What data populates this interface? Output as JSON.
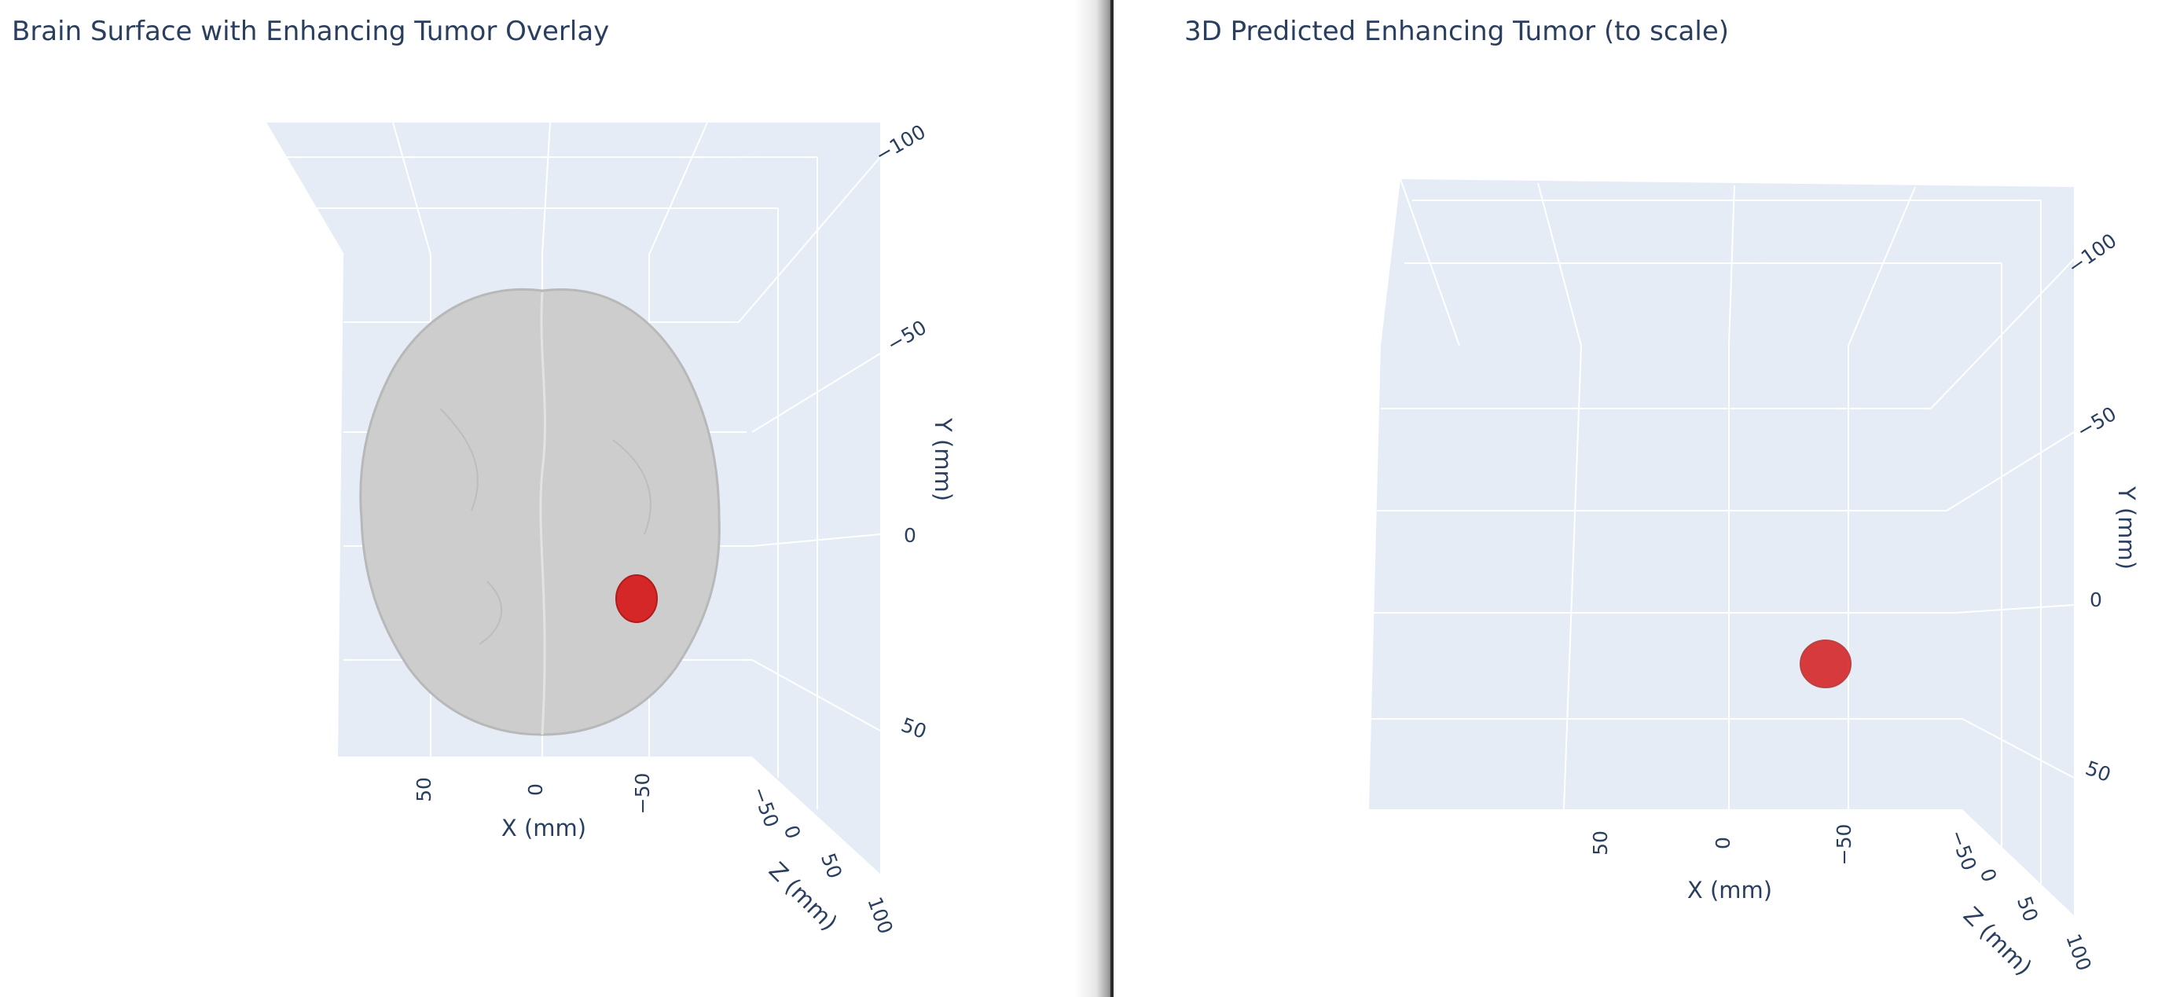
{
  "chart_data": [
    {
      "type": "scatter3d",
      "title": "Brain Surface with Enhancing Tumor Overlay",
      "xlabel": "X (mm)",
      "ylabel": "Y (mm)",
      "zlabel": "Z (mm)",
      "x_ticks": [
        "50",
        "0",
        "−50"
      ],
      "y_ticks": [
        "−100",
        "−50",
        "0",
        "50"
      ],
      "z_ticks": [
        "−50",
        "0",
        "50",
        "100"
      ],
      "colors": {
        "background": "#e5ecf6",
        "grid": "#ffffff",
        "brain": "#c8c8c8",
        "tumor": "#d62728"
      }
    },
    {
      "type": "scatter3d",
      "title": "3D Predicted Enhancing Tumor (to scale)",
      "xlabel": "X (mm)",
      "ylabel": "Y (mm)",
      "zlabel": "Z (mm)",
      "x_ticks": [
        "50",
        "0",
        "−50"
      ],
      "y_ticks": [
        "−100",
        "−50",
        "0",
        "50"
      ],
      "z_ticks": [
        "−50",
        "0",
        "50",
        "100"
      ],
      "colors": {
        "background": "#e5ecf6",
        "grid": "#ffffff",
        "tumor": "#d62728"
      }
    }
  ]
}
